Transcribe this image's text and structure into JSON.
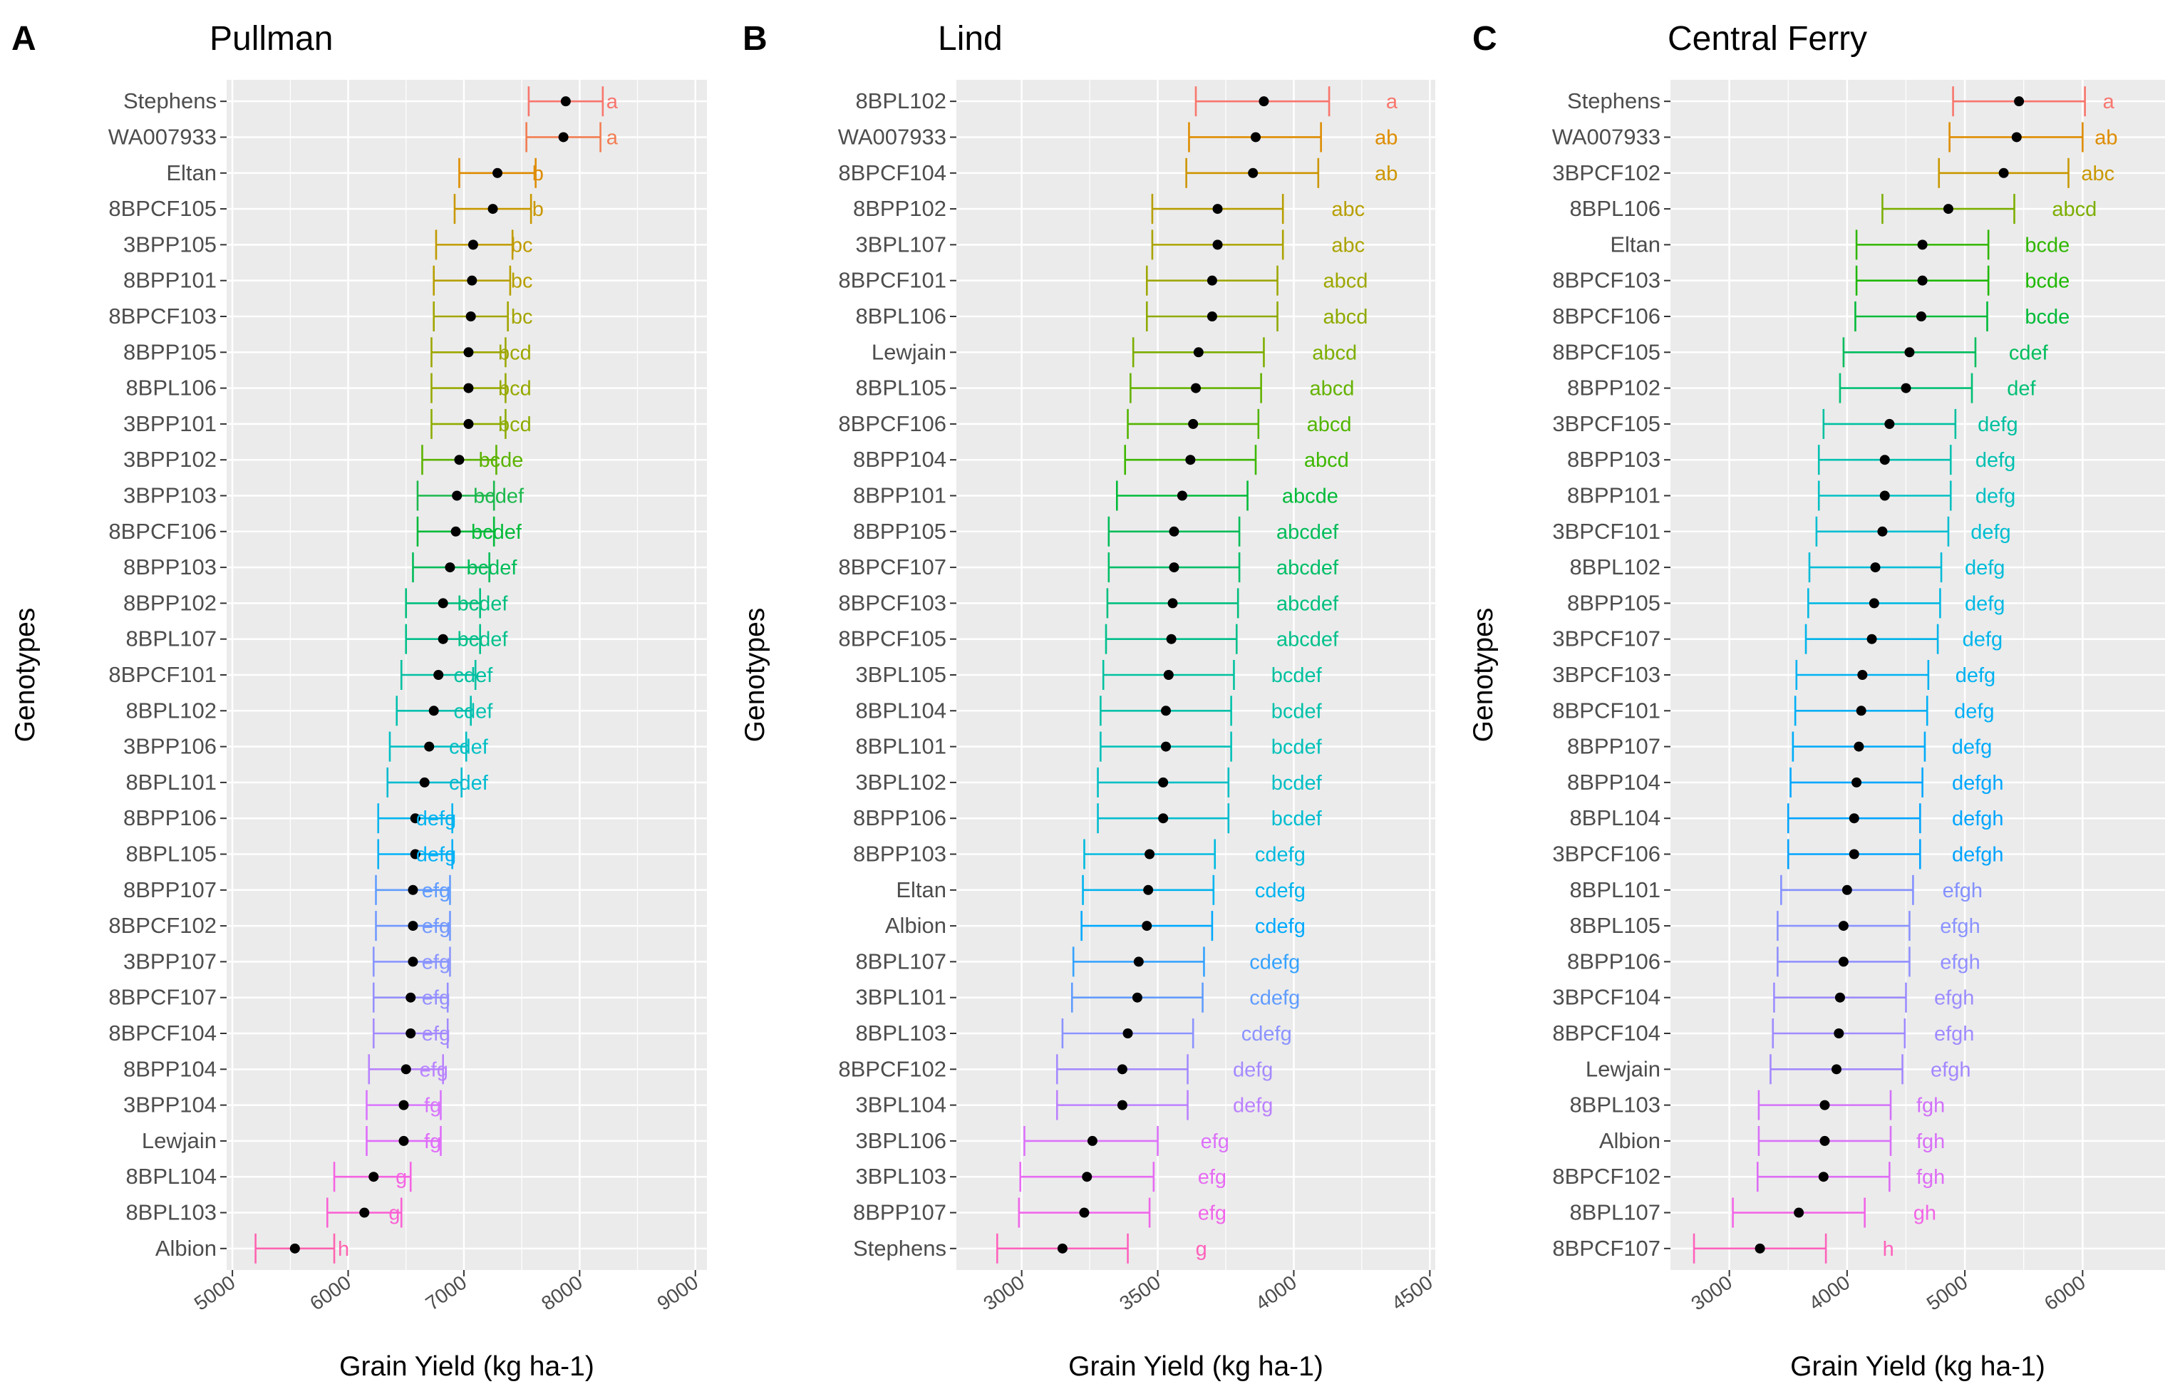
{
  "chart_data": [
    {
      "panel_letter": "A",
      "type": "scatter",
      "subtype": "point-range with significance letters",
      "title": "Pullman",
      "xlabel": "Grain Yield (kg ha-1)",
      "ylabel": "Genotypes",
      "xlim": [
        4950,
        9100
      ],
      "xticks": [
        5000,
        6000,
        7000,
        8000,
        9000
      ],
      "grid": true,
      "genotypes": [
        "Stephens",
        "WA007933",
        "Eltan",
        "8BPCF105",
        "3BPP105",
        "8BPP101",
        "8BPCF103",
        "8BPP105",
        "8BPL106",
        "3BPP101",
        "3BPP102",
        "3BPP103",
        "8BPCF106",
        "8BPP103",
        "8BPP102",
        "8BPL107",
        "8BPCF101",
        "8BPL102",
        "3BPP106",
        "8BPL101",
        "8BPP106",
        "8BPL105",
        "8BPP107",
        "8BPCF102",
        "3BPP107",
        "8BPCF107",
        "8BPCF104",
        "8BPP104",
        "3BPP104",
        "Lewjain",
        "8BPL104",
        "8BPL103",
        "Albion"
      ],
      "means": [
        7880,
        7860,
        7290,
        7250,
        7080,
        7070,
        7060,
        7040,
        7040,
        7040,
        6960,
        6940,
        6930,
        6880,
        6820,
        6820,
        6780,
        6740,
        6700,
        6660,
        6580,
        6580,
        6560,
        6560,
        6560,
        6540,
        6540,
        6500,
        6480,
        6480,
        6220,
        6140,
        5540
      ],
      "lower": [
        7560,
        7540,
        6960,
        6920,
        6760,
        6740,
        6740,
        6720,
        6720,
        6720,
        6640,
        6600,
        6600,
        6560,
        6500,
        6500,
        6460,
        6420,
        6360,
        6340,
        6260,
        6260,
        6240,
        6240,
        6220,
        6220,
        6220,
        6180,
        6160,
        6160,
        5880,
        5820,
        5200
      ],
      "upper": [
        8200,
        8180,
        7620,
        7580,
        7420,
        7400,
        7380,
        7360,
        7360,
        7360,
        7280,
        7260,
        7260,
        7220,
        7140,
        7140,
        7100,
        7060,
        7020,
        6980,
        6900,
        6900,
        6880,
        6880,
        6880,
        6860,
        6860,
        6820,
        6800,
        6800,
        6540,
        6460,
        5880
      ],
      "letters": [
        "a",
        "a",
        "b",
        "b",
        "bc",
        "bc",
        "bc",
        "bcd",
        "bcd",
        "bcd",
        "bcde",
        "bcdef",
        "bcdef",
        "bcdef",
        "bcdef",
        "bcdef",
        "cdef",
        "cdef",
        "cdef",
        "cdef",
        "defg",
        "defg",
        "efg",
        "efg",
        "efg",
        "efg",
        "efg",
        "efg",
        "fg",
        "fg",
        "g",
        "g",
        "h"
      ],
      "letter_x": [
        8280,
        8280,
        7640,
        7640,
        7500,
        7500,
        7500,
        7440,
        7440,
        7440,
        7320,
        7300,
        7280,
        7240,
        7160,
        7160,
        7080,
        7080,
        7040,
        7040,
        6760,
        6760,
        6760,
        6760,
        6760,
        6760,
        6760,
        6740,
        6730,
        6730,
        6460,
        6400,
        5960
      ],
      "colors": [
        "#F8766D",
        "#F27D52",
        "#DE8C00",
        "#C99800",
        "#C09B00",
        "#B79F00",
        "#A3A500",
        "#9EA700",
        "#97A900",
        "#8DAC00",
        "#5BB300",
        "#1AB84B",
        "#00BA38",
        "#00BC59",
        "#00BF7D",
        "#00C08B",
        "#00C0A2",
        "#00C0AF",
        "#00BFC4",
        "#00BBD0",
        "#00B4F0",
        "#00B0F6",
        "#619CFF",
        "#7299FF",
        "#8A95FF",
        "#9590FF",
        "#A58AFF",
        "#B983FF",
        "#D874FD",
        "#E06CFA",
        "#F564E3",
        "#FA62D4",
        "#FF64B0"
      ]
    },
    {
      "panel_letter": "B",
      "type": "scatter",
      "subtype": "point-range with significance letters",
      "title": "Lind",
      "xlabel": "Grain Yield (kg ha-1)",
      "ylabel": "Genotypes",
      "xlim": [
        2760,
        4520
      ],
      "xticks": [
        3000,
        3500,
        4000,
        4500
      ],
      "grid": true,
      "genotypes": [
        "8BPL102",
        "WA007933",
        "8BPCF104",
        "8BPP102",
        "3BPL107",
        "8BPCF101",
        "8BPL106",
        "Lewjain",
        "8BPL105",
        "8BPCF106",
        "8BPP104",
        "8BPP101",
        "8BPP105",
        "8BPCF107",
        "8BPCF103",
        "8BPCF105",
        "3BPL105",
        "8BPL104",
        "8BPL101",
        "3BPL102",
        "8BPP106",
        "8BPP103",
        "Eltan",
        "Albion",
        "8BPL107",
        "3BPL101",
        "8BPL103",
        "8BPCF102",
        "3BPL104",
        "3BPL106",
        "3BPL103",
        "8BPP107",
        "Stephens"
      ],
      "means": [
        3890,
        3860,
        3850,
        3720,
        3720,
        3700,
        3700,
        3650,
        3640,
        3630,
        3620,
        3590,
        3560,
        3560,
        3555,
        3550,
        3540,
        3530,
        3530,
        3520,
        3520,
        3470,
        3465,
        3460,
        3430,
        3425,
        3390,
        3370,
        3370,
        3260,
        3240,
        3230,
        3150
      ],
      "lower": [
        3640,
        3615,
        3605,
        3480,
        3480,
        3460,
        3460,
        3410,
        3400,
        3390,
        3380,
        3350,
        3320,
        3320,
        3315,
        3310,
        3300,
        3290,
        3290,
        3280,
        3280,
        3230,
        3225,
        3220,
        3190,
        3185,
        3150,
        3130,
        3130,
        3010,
        2995,
        2990,
        2910
      ],
      "upper": [
        4130,
        4100,
        4090,
        3960,
        3960,
        3940,
        3940,
        3890,
        3880,
        3870,
        3860,
        3830,
        3800,
        3800,
        3795,
        3790,
        3780,
        3770,
        3770,
        3760,
        3760,
        3710,
        3705,
        3700,
        3670,
        3665,
        3630,
        3610,
        3610,
        3500,
        3485,
        3470,
        3390
      ],
      "letters": [
        "a",
        "ab",
        "ab",
        "abc",
        "abc",
        "abcd",
        "abcd",
        "abcd",
        "abcd",
        "abcd",
        "abcd",
        "abcde",
        "abcdef",
        "abcdef",
        "abcdef",
        "abcdef",
        "bcdef",
        "bcdef",
        "bcdef",
        "bcdef",
        "bcdef",
        "cdefg",
        "cdefg",
        "cdefg",
        "cdefg",
        "cdefg",
        "cdefg",
        "defg",
        "defg",
        "efg",
        "efg",
        "efg",
        "g"
      ],
      "letter_x": [
        4360,
        4340,
        4340,
        4200,
        4200,
        4190,
        4190,
        4150,
        4140,
        4130,
        4120,
        4060,
        4050,
        4050,
        4050,
        4050,
        4010,
        4010,
        4010,
        4010,
        4010,
        3950,
        3950,
        3950,
        3930,
        3930,
        3900,
        3850,
        3850,
        3710,
        3700,
        3700,
        3660
      ],
      "colors": [
        "#F8766D",
        "#DE8C00",
        "#CD9600",
        "#B79F00",
        "#ABA300",
        "#9EA700",
        "#8FAA00",
        "#7CAE00",
        "#64B200",
        "#52B500",
        "#3DB700",
        "#00BA38",
        "#00BC59",
        "#00BE67",
        "#00BF7D",
        "#00C08B",
        "#00C19F",
        "#00C1AA",
        "#00C0B8",
        "#00BFC4",
        "#00BDD0",
        "#00BADE",
        "#00B4EF",
        "#00A9FF",
        "#35A2FF",
        "#619CFF",
        "#8B93FF",
        "#A58AFF",
        "#BB81FF",
        "#DC71FA",
        "#E76BF3",
        "#F066EA",
        "#FF62BC"
      ]
    },
    {
      "panel_letter": "C",
      "type": "scatter",
      "subtype": "point-range with significance letters",
      "title": "Central Ferry",
      "xlabel": "Grain Yield (kg ha-1)",
      "ylabel": "Genotypes",
      "xlim": [
        2500,
        6700
      ],
      "xticks": [
        3000,
        4000,
        5000,
        6000
      ],
      "grid": true,
      "genotypes": [
        "Stephens",
        "WA007933",
        "3BPCF102",
        "8BPL106",
        "Eltan",
        "8BPCF103",
        "8BPCF106",
        "8BPCF105",
        "8BPP102",
        "3BPCF105",
        "8BPP103",
        "8BPP101",
        "3BPCF101",
        "8BPL102",
        "8BPP105",
        "3BPCF107",
        "3BPCF103",
        "8BPCF101",
        "8BPP107",
        "8BPP104",
        "8BPL104",
        "3BPCF106",
        "8BPL101",
        "8BPL105",
        "8BPP106",
        "3BPCF104",
        "8BPCF104",
        "Lewjain",
        "8BPL103",
        "Albion",
        "8BPCF102",
        "8BPL107",
        "8BPCF107"
      ],
      "means": [
        5460,
        5440,
        5330,
        4860,
        4640,
        4640,
        4630,
        4530,
        4500,
        4360,
        4320,
        4320,
        4300,
        4240,
        4230,
        4210,
        4130,
        4120,
        4100,
        4080,
        4060,
        4060,
        4000,
        3970,
        3970,
        3940,
        3930,
        3910,
        3810,
        3810,
        3800,
        3590,
        3260
      ],
      "lower": [
        4900,
        4870,
        4780,
        4300,
        4080,
        4080,
        4070,
        3970,
        3940,
        3800,
        3760,
        3760,
        3740,
        3680,
        3670,
        3650,
        3570,
        3560,
        3540,
        3520,
        3500,
        3500,
        3440,
        3410,
        3410,
        3380,
        3370,
        3350,
        3250,
        3250,
        3240,
        3030,
        2700
      ],
      "upper": [
        6020,
        6000,
        5880,
        5420,
        5200,
        5200,
        5190,
        5090,
        5060,
        4920,
        4880,
        4880,
        4860,
        4800,
        4790,
        4770,
        4690,
        4680,
        4660,
        4640,
        4620,
        4620,
        4560,
        4530,
        4530,
        4500,
        4490,
        4470,
        4370,
        4370,
        4360,
        4150,
        3820
      ],
      "letters": [
        "a",
        "ab",
        "abc",
        "abcd",
        "bcde",
        "bcde",
        "bcde",
        "cdef",
        "def",
        "defg",
        "defg",
        "defg",
        "defg",
        "defg",
        "defg",
        "defg",
        "defg",
        "defg",
        "defg",
        "defgh",
        "defgh",
        "defgh",
        "efgh",
        "efgh",
        "efgh",
        "efgh",
        "efgh",
        "efgh",
        "fgh",
        "fgh",
        "fgh",
        "gh",
        "h"
      ],
      "letter_x": [
        6220,
        6200,
        6130,
        5930,
        5700,
        5700,
        5700,
        5540,
        5480,
        5280,
        5260,
        5260,
        5220,
        5170,
        5170,
        5150,
        5090,
        5080,
        5060,
        5110,
        5110,
        5110,
        4980,
        4960,
        4960,
        4910,
        4910,
        4880,
        4710,
        4710,
        4710,
        4660,
        4350
      ],
      "colors": [
        "#F8766D",
        "#DE8C00",
        "#C99800",
        "#7CAE00",
        "#2FB600",
        "#1DB800",
        "#00BA38",
        "#00BD5C",
        "#00BF74",
        "#00C0A0",
        "#00C0B0",
        "#00BFC2",
        "#00BED1",
        "#00BCD8",
        "#00B9E3",
        "#00B5EB",
        "#00B2F1",
        "#00AFF5",
        "#00ABF9",
        "#00A7FF",
        "#00A5FF",
        "#00A3FF",
        "#8591FF",
        "#8B93FF",
        "#918FFF",
        "#9B8CFF",
        "#A08AFF",
        "#A487FF",
        "#D270FA",
        "#D970F7",
        "#DE6CF5",
        "#F265E6",
        "#FF62BC"
      ]
    }
  ]
}
